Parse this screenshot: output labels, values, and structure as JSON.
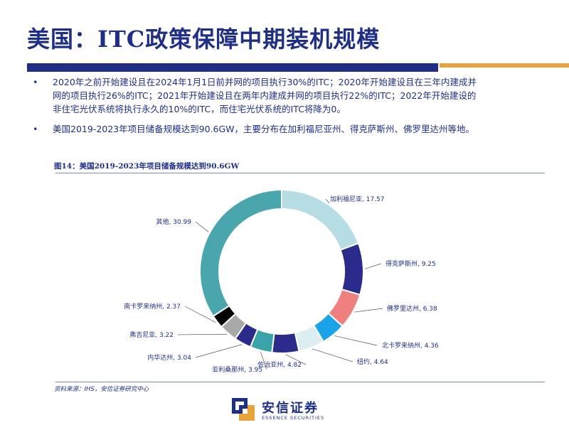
{
  "slide": {
    "title": "美国：ITC政策保障中期装机规模"
  },
  "bullets": [
    {
      "line1": "2020年之前开始建设且在2024年1月1日前并网的项目执行30%的ITC；2020年开始建设且在三年内建成并",
      "line2": "网的项目执行26%的ITC；2021年开始建设且在两年内建成并网的项目执行22%的ITC；2022年开始建设的",
      "line3": "非住宅光伏系统将执行永久的10%的ITC，而住宅光伏系统的ITC将降为0。"
    },
    {
      "line1": "美国2019-2023年项目储备规模达到90.6GW，主要分布在加利福尼亚州、得克萨斯州、佛罗里达州等地。"
    }
  ],
  "figure": {
    "caption": "图14：美国2019-2023年项目储备规模达到90.6GW",
    "source": "资料来源：IHS，安信证券研究中心"
  },
  "chart_data": {
    "type": "pie",
    "variant": "donut",
    "title": "美国2019-2023年项目储备规模达到90.6GW",
    "slices": [
      {
        "label": "加利福尼亚",
        "value": 17.57,
        "color": "#b5dde3"
      },
      {
        "label": "得克萨斯州",
        "value": 9.25,
        "color": "#2b2b8c"
      },
      {
        "label": "佛罗里达州",
        "value": 6.38,
        "color": "#f08080"
      },
      {
        "label": "北卡罗来纳州",
        "value": 4.36,
        "color": "#1aa3e8"
      },
      {
        "label": "纽约",
        "value": 4.64,
        "color": "#ddeef2"
      },
      {
        "label": "佐治亚州",
        "value": 4.82,
        "color": "#2b2b8c"
      },
      {
        "label": "亚利桑那州",
        "value": 3.95,
        "color": "#3aa3aa"
      },
      {
        "label": "内华达州",
        "value": 3.04,
        "color": "#2b2b8c"
      },
      {
        "label": "弗吉尼亚",
        "value": 3.22,
        "color": "#a8a8a8"
      },
      {
        "label": "南卡罗来纳州",
        "value": 2.37,
        "color": "#000000"
      },
      {
        "label": "其他",
        "value": 30.99,
        "color": "#4aa6ad"
      }
    ],
    "label_format": "{label}, {value}"
  },
  "logo": {
    "name_cn": "安信证券",
    "name_en": "ESSENCE SECURITIES",
    "colors": {
      "blue": "#1f2f86",
      "orange": "#e8a43c"
    }
  }
}
